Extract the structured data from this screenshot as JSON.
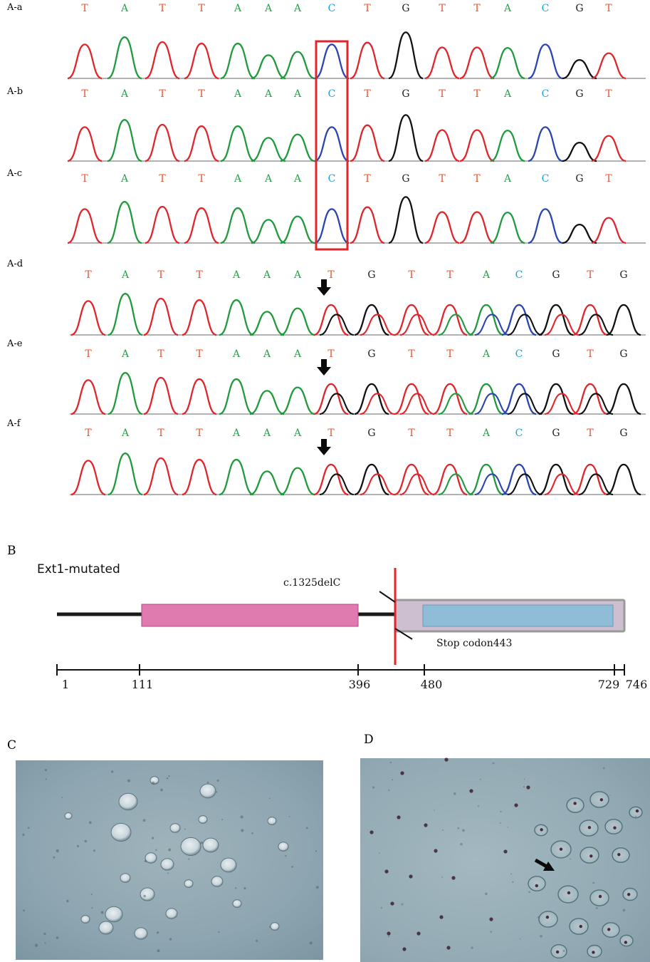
{
  "panels": {
    "A": {
      "tracks": [
        {
          "label": "A-a",
          "sequence": [
            "T",
            "A",
            "T",
            "T",
            "A",
            "A",
            "A",
            "C",
            "T",
            "G",
            "T",
            "T",
            "A",
            "C",
            "G",
            "T"
          ]
        },
        {
          "label": "A-b",
          "sequence": [
            "T",
            "A",
            "T",
            "T",
            "A",
            "A",
            "A",
            "C",
            "T",
            "G",
            "T",
            "T",
            "A",
            "C",
            "G",
            "T"
          ]
        },
        {
          "label": "A-c",
          "sequence": [
            "T",
            "A",
            "T",
            "T",
            "A",
            "A",
            "A",
            "C",
            "T",
            "G",
            "T",
            "T",
            "A",
            "C",
            "G",
            "T"
          ]
        },
        {
          "label": "A-d",
          "sequence": [
            "T",
            "A",
            "T",
            "T",
            "A",
            "A",
            "A",
            "T",
            "G",
            "T",
            "T",
            "A",
            "C",
            "G",
            "T",
            "G"
          ]
        },
        {
          "label": "A-e",
          "sequence": [
            "T",
            "A",
            "T",
            "T",
            "A",
            "A",
            "A",
            "T",
            "G",
            "T",
            "T",
            "A",
            "C",
            "G",
            "T",
            "G"
          ]
        },
        {
          "label": "A-f",
          "sequence": [
            "T",
            "A",
            "T",
            "T",
            "A",
            "A",
            "A",
            "T",
            "G",
            "T",
            "T",
            "A",
            "C",
            "G",
            "T",
            "G"
          ]
        }
      ],
      "base_colors": {
        "T": "#e8552f",
        "A": "#2aa24a",
        "C": "#1aa3d6",
        "G": "#222222"
      },
      "trace_colors": {
        "T": "#e0252b",
        "A": "#1f9a3c",
        "C": "#2a45b0",
        "G": "#111111"
      },
      "highlight_box_color": "#e0252b",
      "arrow_icon": "down-arrow-icon"
    },
    "B": {
      "label": "B",
      "title": "Ext1-mutated",
      "mutation": "c.1325delC",
      "stop": "Stop codon443",
      "scale_ticks": [
        1,
        111,
        396,
        480,
        729,
        746
      ],
      "scale_tick_labels": [
        "1",
        "111",
        "396",
        "480",
        "729",
        "746"
      ],
      "domain1": {
        "start": 111,
        "end": 396,
        "color": "#e07bb0"
      },
      "domain2": {
        "start": 480,
        "end": 729,
        "color": "#8fbcd6"
      },
      "truncated_region": {
        "start": 443,
        "end": 746,
        "color": "#cdbfcf"
      },
      "mutation_position": 443,
      "mutation_line_color": "#e0252b"
    },
    "C": {
      "label": "C"
    },
    "D": {
      "label": "D"
    }
  }
}
